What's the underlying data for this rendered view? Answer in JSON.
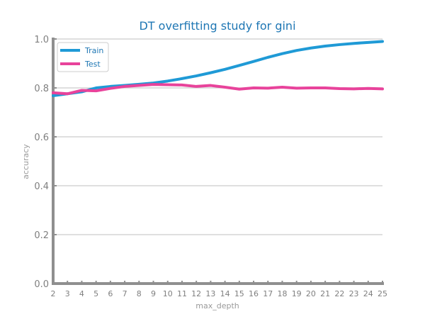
{
  "chart_data": {
    "type": "line",
    "title": "DT overfitting study for gini",
    "xlabel": "max_depth",
    "ylabel": "accuracy",
    "x": [
      2,
      3,
      4,
      5,
      6,
      7,
      8,
      9,
      10,
      11,
      12,
      13,
      14,
      15,
      16,
      17,
      18,
      19,
      20,
      21,
      22,
      23,
      24,
      25
    ],
    "ylim": [
      0.0,
      1.0
    ],
    "yticks": [
      0.0,
      0.2,
      0.4,
      0.6,
      0.8,
      1.0
    ],
    "ytick_labels": [
      "0.0",
      "0.2",
      "0.4",
      "0.6",
      "0.8",
      "1.0"
    ],
    "grid": "horizontal",
    "legend": "top-left",
    "series": [
      {
        "name": "Train",
        "color": "#1f9ad6",
        "values": [
          0.768,
          0.776,
          0.784,
          0.8,
          0.806,
          0.81,
          0.815,
          0.82,
          0.828,
          0.838,
          0.849,
          0.862,
          0.876,
          0.892,
          0.908,
          0.925,
          0.94,
          0.953,
          0.963,
          0.971,
          0.977,
          0.982,
          0.986,
          0.99
        ]
      },
      {
        "name": "Test",
        "color": "#e8439b",
        "values": [
          0.78,
          0.776,
          0.79,
          0.788,
          0.798,
          0.806,
          0.81,
          0.814,
          0.813,
          0.812,
          0.806,
          0.81,
          0.803,
          0.795,
          0.8,
          0.799,
          0.803,
          0.799,
          0.8,
          0.8,
          0.797,
          0.796,
          0.798,
          0.796
        ]
      }
    ]
  }
}
